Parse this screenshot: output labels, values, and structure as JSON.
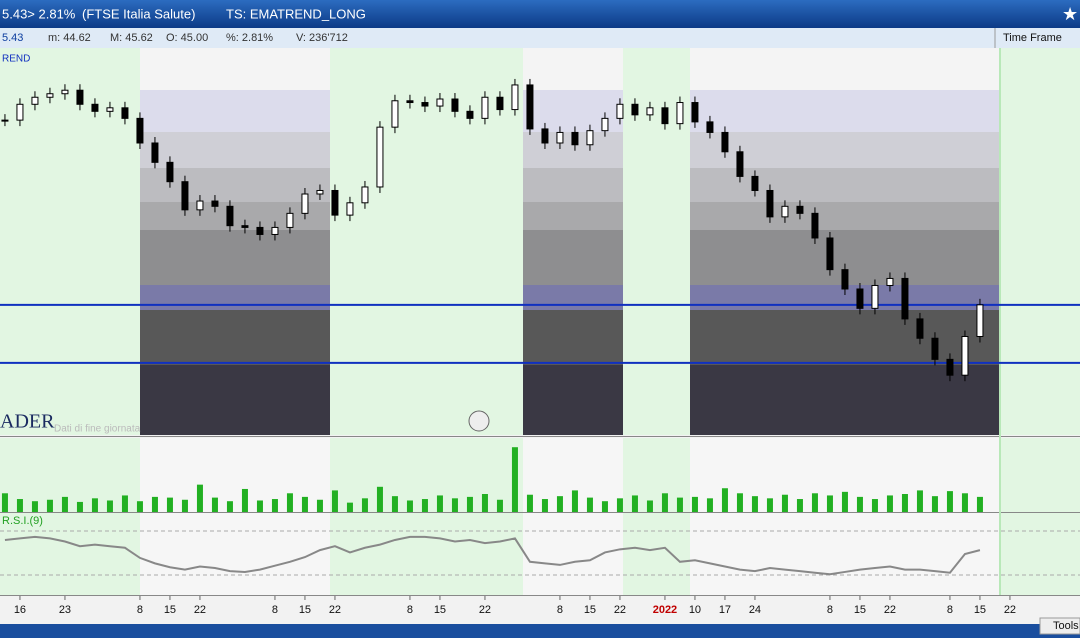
{
  "header": {
    "quote": "5.43> 2.81%",
    "instrument": "(FTSE Italia Salute)",
    "system": "TS: EMATREND_LONG"
  },
  "info_bar": {
    "last": "5.43",
    "min": "m: 44.62",
    "max": "M: 45.62",
    "open": "O: 45.00",
    "change": "%: 2.81%",
    "volume": "V: 236'712",
    "time_frame": "Time Frame"
  },
  "chart_data": {
    "type": "candlestick",
    "label": "REND",
    "watermark": "ADER",
    "note": "Dati di fine giornata",
    "xlim": [
      -0.33,
      71.67
    ],
    "xticks": [
      {
        "value": 1,
        "label": "16"
      },
      {
        "value": 4,
        "label": "23"
      },
      {
        "value": 9,
        "label": "8"
      },
      {
        "value": 11,
        "label": "15"
      },
      {
        "value": 13,
        "label": "22"
      },
      {
        "value": 18,
        "label": "8"
      },
      {
        "value": 20,
        "label": "15"
      },
      {
        "value": 22,
        "label": "22"
      },
      {
        "value": 27,
        "label": "8"
      },
      {
        "value": 29,
        "label": "15"
      },
      {
        "value": 32,
        "label": "22"
      },
      {
        "value": 37,
        "label": "8"
      },
      {
        "value": 39,
        "label": "15"
      },
      {
        "value": 41,
        "label": "22"
      },
      {
        "value": 44,
        "label": "2022"
      },
      {
        "value": 46,
        "label": "10"
      },
      {
        "value": 48,
        "label": "17"
      },
      {
        "value": 50,
        "label": "24"
      },
      {
        "value": 55,
        "label": "8"
      },
      {
        "value": 57,
        "label": "15"
      },
      {
        "value": 59,
        "label": "22"
      },
      {
        "value": 63,
        "label": "8"
      },
      {
        "value": 65,
        "label": "15"
      },
      {
        "value": 67,
        "label": "22"
      }
    ],
    "ylim": [
      38,
      60
    ],
    "close": [
      55.9,
      56.8,
      57.2,
      57.4,
      57.6,
      56.8,
      56.4,
      56.6,
      56.0,
      54.6,
      53.5,
      52.4,
      50.8,
      51.3,
      51.0,
      49.9,
      49.8,
      49.4,
      49.8,
      50.6,
      51.7,
      51.9,
      50.5,
      51.2,
      52.1,
      55.5,
      57.0,
      56.9,
      56.7,
      57.1,
      56.4,
      56.0,
      57.2,
      56.5,
      57.9,
      55.4,
      54.6,
      55.2,
      54.5,
      55.3,
      56.0,
      56.8,
      56.2,
      56.6,
      55.7,
      56.9,
      55.8,
      55.2,
      54.1,
      52.7,
      51.9,
      50.4,
      51.0,
      50.6,
      49.2,
      47.4,
      46.3,
      45.2,
      46.5,
      46.9,
      44.6,
      43.5,
      42.3,
      41.4,
      43.6,
      45.4
    ],
    "levels": [
      45.4,
      42.1
    ],
    "level_color": "#1030c0",
    "volume": {
      "ylim": [
        0,
        1000
      ],
      "color": "#22b022",
      "values": [
        260,
        180,
        150,
        170,
        210,
        140,
        190,
        160,
        230,
        150,
        210,
        200,
        170,
        380,
        200,
        150,
        320,
        160,
        180,
        260,
        210,
        170,
        300,
        130,
        190,
        350,
        220,
        160,
        180,
        230,
        190,
        210,
        250,
        170,
        900,
        240,
        180,
        220,
        300,
        200,
        150,
        190,
        230,
        160,
        260,
        200,
        210,
        190,
        330,
        260,
        220,
        190,
        240,
        180,
        260,
        230,
        280,
        210,
        180,
        230,
        250,
        300,
        220,
        290,
        260,
        210
      ]
    },
    "rsi": {
      "name": "R.S.I.(9)",
      "ylim": [
        0,
        100
      ],
      "color": "#888888",
      "values": [
        68,
        70,
        72,
        70,
        66,
        60,
        62,
        60,
        58,
        45,
        38,
        33,
        30,
        34,
        32,
        28,
        27,
        30,
        35,
        40,
        46,
        55,
        60,
        52,
        58,
        62,
        68,
        72,
        72,
        70,
        66,
        68,
        64,
        66,
        70,
        40,
        38,
        36,
        40,
        42,
        52,
        56,
        58,
        55,
        58,
        40,
        42,
        38,
        34,
        30,
        28,
        32,
        30,
        28,
        26,
        24,
        27,
        30,
        32,
        34,
        30,
        30,
        28,
        26,
        50,
        55
      ]
    }
  },
  "footer": {
    "tools": "Tools"
  }
}
